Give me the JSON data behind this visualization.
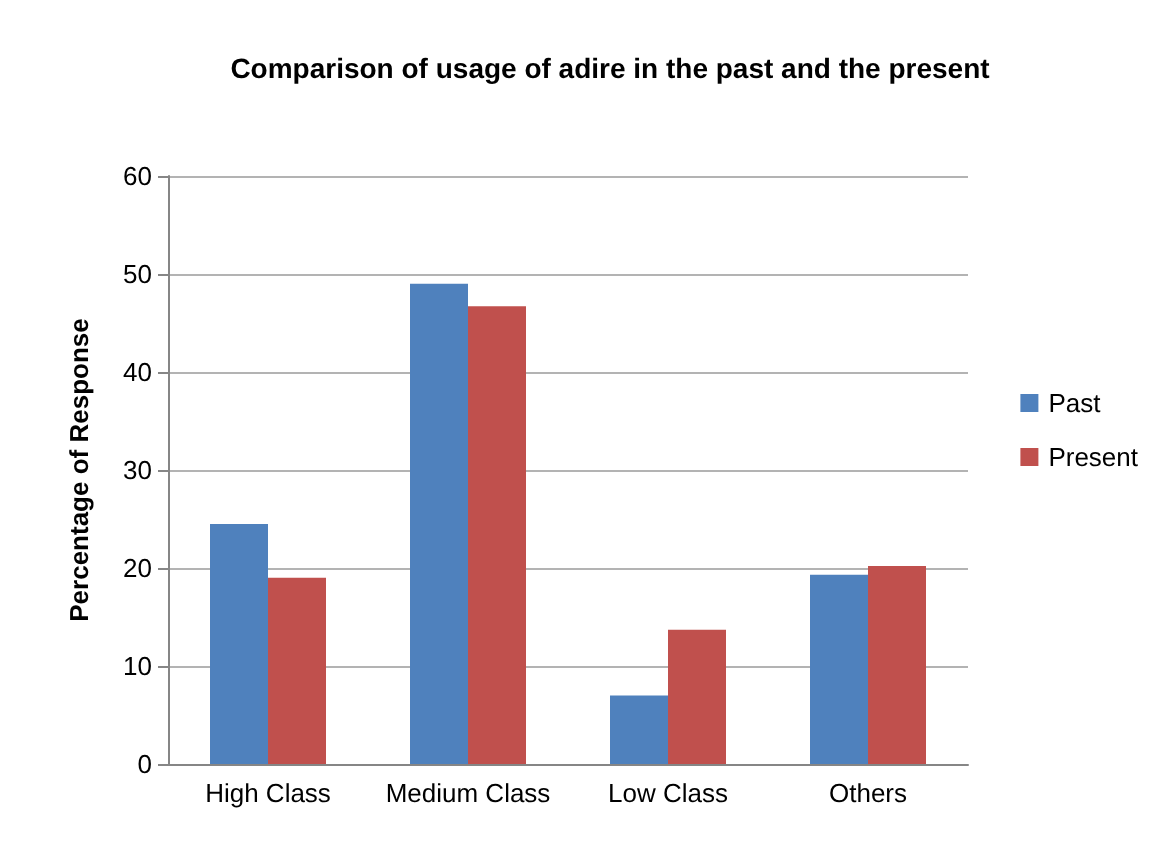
{
  "chart_data": {
    "type": "bar",
    "title": "Comparison of usage of adire in the past and the present",
    "ylabel": "Percentage of Response",
    "categories": [
      "High Class",
      "Medium Class",
      "Low Class",
      "Others"
    ],
    "series": [
      {
        "name": "Past",
        "color": "#4f81bd",
        "values": [
          24.5,
          49.0,
          7.0,
          19.3
        ]
      },
      {
        "name": "Present",
        "color": "#c0504d",
        "values": [
          19.0,
          46.7,
          13.7,
          20.2
        ]
      }
    ],
    "ylim": [
      0,
      60
    ],
    "yticks": [
      0,
      10,
      20,
      30,
      40,
      50,
      60
    ],
    "grid": "y",
    "legend": "right"
  }
}
